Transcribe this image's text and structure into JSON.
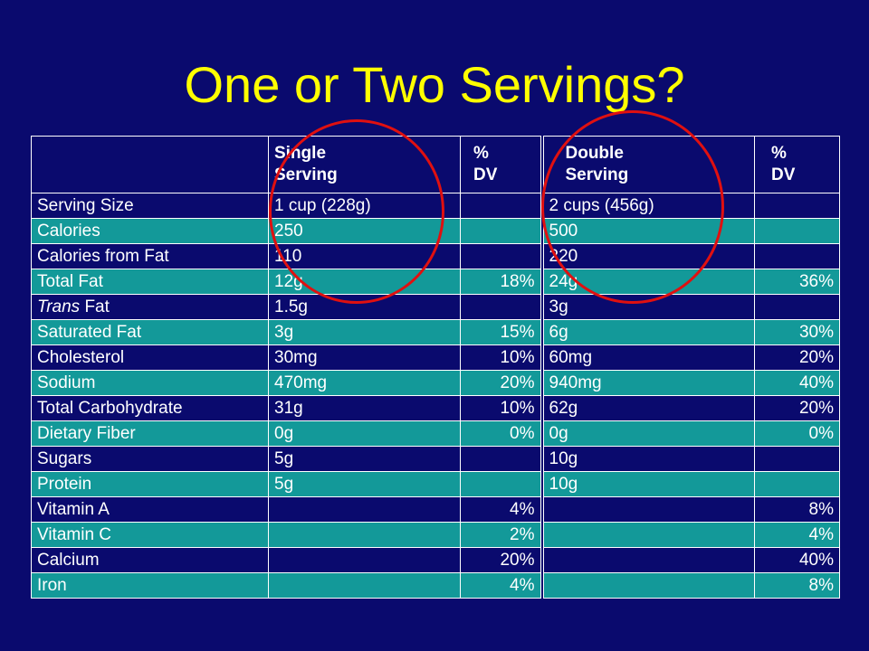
{
  "title": "One or Two Servings?",
  "header": {
    "single_line1": "Single",
    "single_line2": "Serving",
    "dv1_line1": "%",
    "dv1_line2": "DV",
    "double_line1": "Double",
    "double_line2": "Serving",
    "dv2_line1": "%",
    "dv2_line2": "DV"
  },
  "rows": [
    {
      "nutrient": "Serving Size",
      "single": "1 cup (228g)",
      "single_dv": "",
      "double": "2 cups (456g)",
      "double_dv": ""
    },
    {
      "nutrient": "Calories",
      "single": "250",
      "single_dv": "",
      "double": "500",
      "double_dv": ""
    },
    {
      "nutrient": "Calories from Fat",
      "single": "110",
      "single_dv": "",
      "double": "220",
      "double_dv": ""
    },
    {
      "nutrient": "Total Fat",
      "single": "12g",
      "single_dv": "18%",
      "double": "24g",
      "double_dv": "36%"
    },
    {
      "nutrient_italic": "Trans",
      "nutrient_rest": " Fat",
      "single": "1.5g",
      "single_dv": "",
      "double": "3g",
      "double_dv": ""
    },
    {
      "nutrient": "Saturated Fat",
      "single": "3g",
      "single_dv": "15%",
      "double": "6g",
      "double_dv": "30%"
    },
    {
      "nutrient": "Cholesterol",
      "single": "30mg",
      "single_dv": "10%",
      "double": "60mg",
      "double_dv": "20%"
    },
    {
      "nutrient": "Sodium",
      "single": "470mg",
      "single_dv": "20%",
      "double": "940mg",
      "double_dv": "40%"
    },
    {
      "nutrient": "Total Carbohydrate",
      "single": "31g",
      "single_dv": "10%",
      "double": "62g",
      "double_dv": "20%"
    },
    {
      "nutrient": "Dietary Fiber",
      "single": "0g",
      "single_dv": "0%",
      "double": "0g",
      "double_dv": "0%"
    },
    {
      "nutrient": "Sugars",
      "single": "5g",
      "single_dv": "",
      "double": "10g",
      "double_dv": ""
    },
    {
      "nutrient": "Protein",
      "single": "5g",
      "single_dv": "",
      "double": "10g",
      "double_dv": ""
    },
    {
      "nutrient": "Vitamin A",
      "single": "",
      "single_dv": "4%",
      "double": "",
      "double_dv": "8%"
    },
    {
      "nutrient": "Vitamin C",
      "single": "",
      "single_dv": "2%",
      "double": "",
      "double_dv": "4%"
    },
    {
      "nutrient": "Calcium",
      "single": "",
      "single_dv": "20%",
      "double": "",
      "double_dv": "40%"
    },
    {
      "nutrient": "Iron",
      "single": "",
      "single_dv": "4%",
      "double": "",
      "double_dv": "8%"
    }
  ],
  "colors": {
    "background": "#0a0a6e",
    "title": "#ffff00",
    "teal_row": "#139999",
    "circle": "#e01010"
  }
}
